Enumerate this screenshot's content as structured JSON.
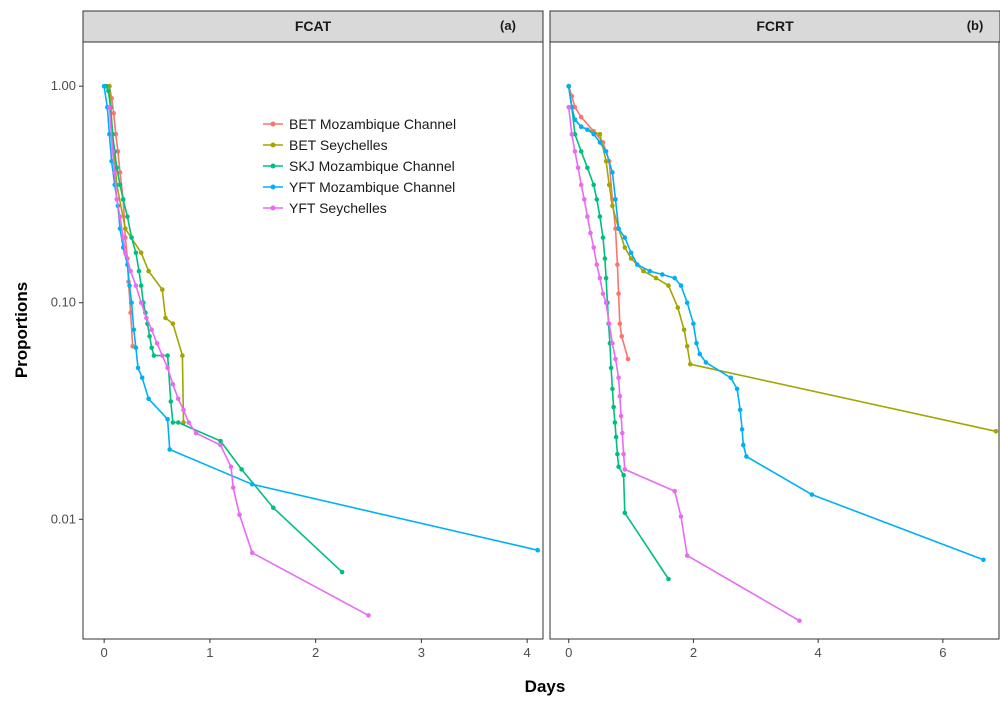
{
  "chart_data": {
    "type": "line",
    "ylabel": "Proportions",
    "xlabel": "Days",
    "y_scale": "log10",
    "ylim": [
      0.0028,
      1.6
    ],
    "y_ticks": [
      {
        "value": 1,
        "label": "1.00"
      },
      {
        "value": 0.1,
        "label": "0.10"
      },
      {
        "value": 0.01,
        "label": "0.01"
      }
    ],
    "grid": false,
    "legend_position": "inside-top-right of left panel",
    "legend": [
      {
        "name": "BET Mozambique Channel",
        "color": "#F8766D"
      },
      {
        "name": "BET Seychelles",
        "color": "#A3A500"
      },
      {
        "name": "SKJ Mozambique Channel",
        "color": "#00BF7D"
      },
      {
        "name": "YFT Mozambique Channel",
        "color": "#00B0F6"
      },
      {
        "name": "YFT Seychelles",
        "color": "#E76BF3"
      }
    ],
    "panels": [
      {
        "strip": "FCAT",
        "tag": "(a)",
        "xlim": [
          -0.2,
          4.15
        ],
        "x_ticks": [
          0,
          1,
          2,
          3,
          4
        ],
        "x_tick_labels": [
          "0",
          "1",
          "2",
          "3",
          "4"
        ],
        "series": [
          {
            "name": "BET Mozambique Channel",
            "color": "#F8766D",
            "points": [
              [
                0.05,
                1.0
              ],
              [
                0.07,
                0.88
              ],
              [
                0.09,
                0.75
              ],
              [
                0.11,
                0.6
              ],
              [
                0.13,
                0.5
              ],
              [
                0.15,
                0.4
              ],
              [
                0.18,
                0.3
              ],
              [
                0.2,
                0.2
              ],
              [
                0.22,
                0.16
              ],
              [
                0.23,
                0.125
              ],
              [
                0.25,
                0.09
              ],
              [
                0.27,
                0.063
              ]
            ]
          },
          {
            "name": "BET Seychelles",
            "color": "#A3A500",
            "points": [
              [
                0.05,
                1.0
              ],
              [
                0.08,
                0.6
              ],
              [
                0.12,
                0.35
              ],
              [
                0.2,
                0.22
              ],
              [
                0.35,
                0.17
              ],
              [
                0.42,
                0.14
              ],
              [
                0.55,
                0.115
              ],
              [
                0.58,
                0.085
              ],
              [
                0.65,
                0.08
              ],
              [
                0.74,
                0.057
              ],
              [
                0.75,
                0.028
              ]
            ]
          },
          {
            "name": "SKJ Mozambique Channel",
            "color": "#00BF7D",
            "points": [
              [
                0.02,
                1.0
              ],
              [
                0.04,
                0.95
              ],
              [
                0.06,
                0.8
              ],
              [
                0.08,
                0.6
              ],
              [
                0.1,
                0.5
              ],
              [
                0.12,
                0.42
              ],
              [
                0.15,
                0.35
              ],
              [
                0.18,
                0.3
              ],
              [
                0.22,
                0.25
              ],
              [
                0.26,
                0.2
              ],
              [
                0.3,
                0.17
              ],
              [
                0.33,
                0.14
              ],
              [
                0.35,
                0.12
              ],
              [
                0.37,
                0.1
              ],
              [
                0.39,
                0.09
              ],
              [
                0.41,
                0.08
              ],
              [
                0.43,
                0.07
              ],
              [
                0.45,
                0.062
              ],
              [
                0.47,
                0.057
              ],
              [
                0.6,
                0.057
              ],
              [
                0.63,
                0.035
              ],
              [
                0.65,
                0.028
              ],
              [
                0.7,
                0.028
              ],
              [
                1.1,
                0.023
              ],
              [
                1.3,
                0.017
              ],
              [
                1.6,
                0.0113
              ],
              [
                2.25,
                0.0057
              ]
            ]
          },
          {
            "name": "YFT Mozambique Channel",
            "color": "#00B0F6",
            "points": [
              [
                0.0,
                1.0
              ],
              [
                0.03,
                0.8
              ],
              [
                0.05,
                0.6
              ],
              [
                0.07,
                0.45
              ],
              [
                0.1,
                0.35
              ],
              [
                0.13,
                0.28
              ],
              [
                0.15,
                0.22
              ],
              [
                0.18,
                0.18
              ],
              [
                0.22,
                0.15
              ],
              [
                0.24,
                0.12
              ],
              [
                0.26,
                0.1
              ],
              [
                0.28,
                0.075
              ],
              [
                0.3,
                0.062
              ],
              [
                0.32,
                0.05
              ],
              [
                0.36,
                0.045
              ],
              [
                0.42,
                0.036
              ],
              [
                0.6,
                0.029
              ],
              [
                0.62,
                0.021
              ],
              [
                1.4,
                0.0145
              ],
              [
                4.1,
                0.0072
              ]
            ]
          },
          {
            "name": "YFT Seychelles",
            "color": "#E76BF3",
            "points": [
              [
                0.05,
                0.8
              ],
              [
                0.08,
                0.5
              ],
              [
                0.1,
                0.4
              ],
              [
                0.12,
                0.3
              ],
              [
                0.15,
                0.25
              ],
              [
                0.18,
                0.2
              ],
              [
                0.2,
                0.17
              ],
              [
                0.25,
                0.14
              ],
              [
                0.3,
                0.12
              ],
              [
                0.35,
                0.1
              ],
              [
                0.4,
                0.085
              ],
              [
                0.45,
                0.075
              ],
              [
                0.5,
                0.065
              ],
              [
                0.55,
                0.057
              ],
              [
                0.6,
                0.05
              ],
              [
                0.65,
                0.042
              ],
              [
                0.7,
                0.036
              ],
              [
                0.75,
                0.032
              ],
              [
                0.8,
                0.028
              ],
              [
                0.87,
                0.025
              ],
              [
                1.1,
                0.022
              ],
              [
                1.2,
                0.0175
              ],
              [
                1.22,
                0.014
              ],
              [
                1.28,
                0.0105
              ],
              [
                1.4,
                0.007
              ],
              [
                2.5,
                0.0036
              ]
            ]
          }
        ]
      },
      {
        "strip": "FCRT",
        "tag": "(b)",
        "xlim": [
          -0.3,
          6.9
        ],
        "x_ticks": [
          0,
          2,
          4,
          6
        ],
        "x_tick_labels": [
          "0",
          "2",
          "4",
          "6"
        ],
        "series": [
          {
            "name": "BET Mozambique Channel",
            "color": "#F8766D",
            "points": [
              [
                0.0,
                1.0
              ],
              [
                0.05,
                0.9
              ],
              [
                0.1,
                0.8
              ],
              [
                0.2,
                0.72
              ],
              [
                0.4,
                0.62
              ],
              [
                0.55,
                0.55
              ],
              [
                0.65,
                0.45
              ],
              [
                0.7,
                0.3
              ],
              [
                0.75,
                0.22
              ],
              [
                0.78,
                0.15
              ],
              [
                0.8,
                0.11
              ],
              [
                0.82,
                0.08
              ],
              [
                0.85,
                0.07
              ],
              [
                0.95,
                0.055
              ]
            ]
          },
          {
            "name": "BET Seychelles",
            "color": "#A3A500",
            "points": [
              [
                0.0,
                1.0
              ],
              [
                0.05,
                0.8
              ],
              [
                0.1,
                0.7
              ],
              [
                0.2,
                0.65
              ],
              [
                0.5,
                0.6
              ],
              [
                0.6,
                0.45
              ],
              [
                0.65,
                0.35
              ],
              [
                0.7,
                0.28
              ],
              [
                0.8,
                0.22
              ],
              [
                0.9,
                0.18
              ],
              [
                1.0,
                0.16
              ],
              [
                1.2,
                0.14
              ],
              [
                1.4,
                0.13
              ],
              [
                1.6,
                0.12
              ],
              [
                1.75,
                0.095
              ],
              [
                1.85,
                0.075
              ],
              [
                1.9,
                0.063
              ],
              [
                1.95,
                0.052
              ],
              [
                6.85,
                0.0255
              ]
            ]
          },
          {
            "name": "SKJ Mozambique Channel",
            "color": "#00BF7D",
            "points": [
              [
                0.0,
                1.0
              ],
              [
                0.05,
                0.8
              ],
              [
                0.1,
                0.6
              ],
              [
                0.2,
                0.5
              ],
              [
                0.3,
                0.42
              ],
              [
                0.4,
                0.35
              ],
              [
                0.45,
                0.3
              ],
              [
                0.5,
                0.25
              ],
              [
                0.55,
                0.2
              ],
              [
                0.58,
                0.16
              ],
              [
                0.6,
                0.13
              ],
              [
                0.62,
                0.1
              ],
              [
                0.64,
                0.08
              ],
              [
                0.66,
                0.065
              ],
              [
                0.68,
                0.05
              ],
              [
                0.7,
                0.04
              ],
              [
                0.72,
                0.033
              ],
              [
                0.74,
                0.028
              ],
              [
                0.76,
                0.024
              ],
              [
                0.78,
                0.02
              ],
              [
                0.8,
                0.0175
              ],
              [
                0.88,
                0.016
              ],
              [
                0.9,
                0.0107
              ],
              [
                1.6,
                0.0053
              ]
            ]
          },
          {
            "name": "YFT Mozambique Channel",
            "color": "#00B0F6",
            "points": [
              [
                0.0,
                1.0
              ],
              [
                0.05,
                0.8
              ],
              [
                0.1,
                0.7
              ],
              [
                0.2,
                0.65
              ],
              [
                0.3,
                0.63
              ],
              [
                0.4,
                0.6
              ],
              [
                0.5,
                0.55
              ],
              [
                0.6,
                0.5
              ],
              [
                0.7,
                0.4
              ],
              [
                0.75,
                0.3
              ],
              [
                0.8,
                0.22
              ],
              [
                0.9,
                0.2
              ],
              [
                1.0,
                0.17
              ],
              [
                1.1,
                0.15
              ],
              [
                1.3,
                0.14
              ],
              [
                1.5,
                0.135
              ],
              [
                1.7,
                0.13
              ],
              [
                1.8,
                0.12
              ],
              [
                1.9,
                0.1
              ],
              [
                2.0,
                0.08
              ],
              [
                2.05,
                0.065
              ],
              [
                2.1,
                0.058
              ],
              [
                2.2,
                0.053
              ],
              [
                2.6,
                0.045
              ],
              [
                2.7,
                0.04
              ],
              [
                2.75,
                0.032
              ],
              [
                2.78,
                0.026
              ],
              [
                2.8,
                0.022
              ],
              [
                2.85,
                0.0195
              ],
              [
                3.9,
                0.013
              ],
              [
                6.65,
                0.0065
              ]
            ]
          },
          {
            "name": "YFT Seychelles",
            "color": "#E76BF3",
            "points": [
              [
                0.0,
                0.8
              ],
              [
                0.05,
                0.6
              ],
              [
                0.1,
                0.5
              ],
              [
                0.15,
                0.42
              ],
              [
                0.2,
                0.35
              ],
              [
                0.25,
                0.3
              ],
              [
                0.3,
                0.25
              ],
              [
                0.35,
                0.21
              ],
              [
                0.4,
                0.18
              ],
              [
                0.45,
                0.15
              ],
              [
                0.5,
                0.13
              ],
              [
                0.55,
                0.11
              ],
              [
                0.6,
                0.1
              ],
              [
                0.65,
                0.08
              ],
              [
                0.7,
                0.065
              ],
              [
                0.75,
                0.055
              ],
              [
                0.8,
                0.045
              ],
              [
                0.82,
                0.037
              ],
              [
                0.84,
                0.03
              ],
              [
                0.86,
                0.025
              ],
              [
                0.88,
                0.02
              ],
              [
                0.9,
                0.017
              ],
              [
                1.7,
                0.0135
              ],
              [
                1.8,
                0.0103
              ],
              [
                1.9,
                0.0068
              ],
              [
                3.7,
                0.0034
              ]
            ]
          }
        ]
      }
    ]
  }
}
